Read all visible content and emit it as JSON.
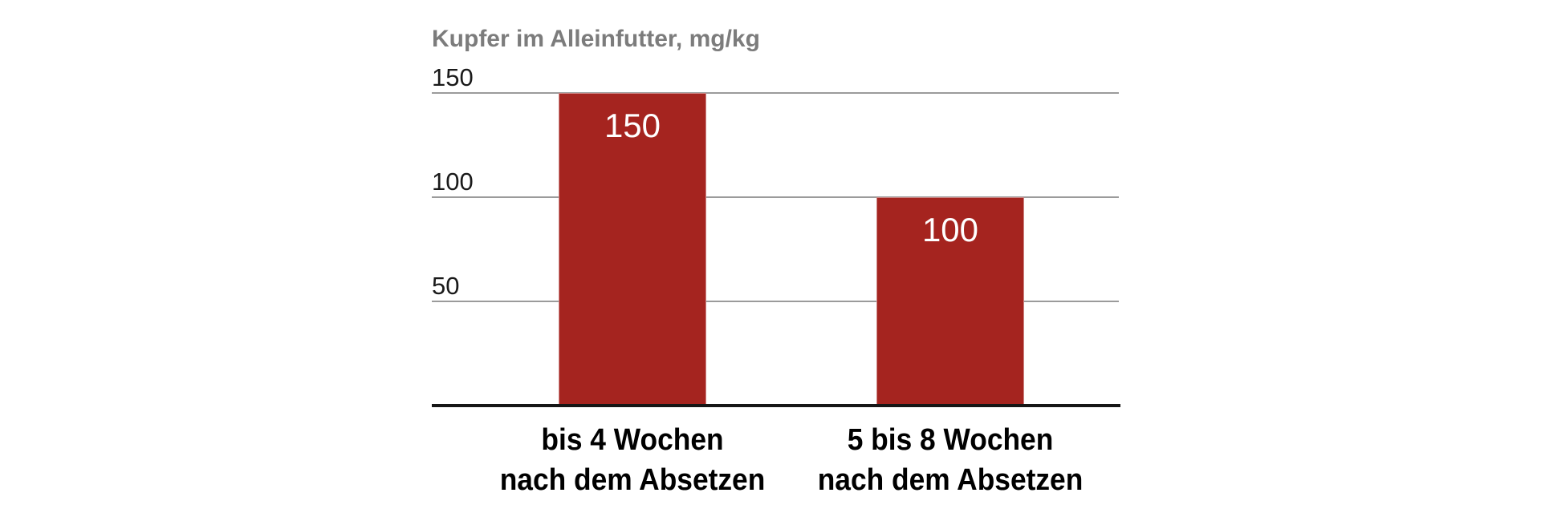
{
  "chart_data": {
    "type": "bar",
    "title": "Kupfer im Alleinfutter, mg/kg",
    "categories": [
      "bis 4 Wochen nach dem Absetzen",
      "5 bis 8 Wochen nach dem Absetzen"
    ],
    "category_lines": [
      [
        "bis 4 Wochen",
        "nach dem Absetzen"
      ],
      [
        "5 bis 8 Wochen",
        "nach dem Absetzen"
      ]
    ],
    "values": [
      150,
      100
    ],
    "value_labels": [
      "150",
      "100"
    ],
    "yticks": [
      150,
      100,
      50
    ],
    "ylim": [
      0,
      150
    ],
    "xlabel": "",
    "ylabel": "Kupfer im Alleinfutter, mg/kg",
    "grid": true,
    "legend": false,
    "colors": {
      "bar": "#A5241F",
      "value_label": "#FFFFFF",
      "gridline": "#9B9B9B",
      "axis_line": "#161616",
      "title": "#7C7C7C",
      "tick_label": "#1A1A1A",
      "category_label": "#000000",
      "background": "#FFFFFF"
    }
  }
}
